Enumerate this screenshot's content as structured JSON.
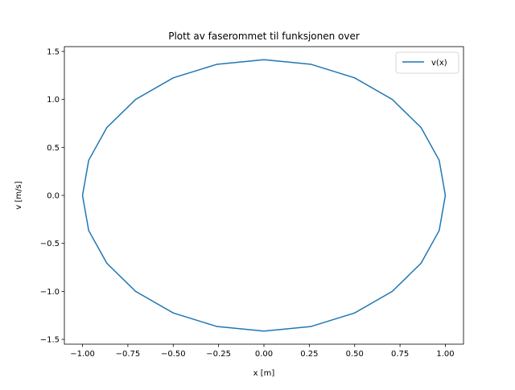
{
  "chart_data": {
    "type": "line",
    "title": "Plott av faserommet til funksjonen over",
    "xlabel": "x [m]",
    "ylabel": "v [m/s]",
    "xlim": [
      -1.1,
      1.1
    ],
    "ylim": [
      -1.55,
      1.55
    ],
    "xticks": [
      -1.0,
      -0.75,
      -0.5,
      -0.25,
      0.0,
      0.25,
      0.5,
      0.75,
      1.0
    ],
    "xtick_labels": [
      "−1.00",
      "−0.75",
      "−0.50",
      "−0.25",
      "0.00",
      "0.25",
      "0.50",
      "0.75",
      "1.00"
    ],
    "yticks": [
      -1.5,
      -1.0,
      -0.5,
      0.0,
      0.5,
      1.0,
      1.5
    ],
    "ytick_labels": [
      "−1.5",
      "−1.0",
      "−0.5",
      "0.0",
      "0.5",
      "1.0",
      "1.5"
    ],
    "grid": false,
    "legend_position": "upper-right",
    "series": [
      {
        "name": "v(x)",
        "color": "#1f77b4",
        "x": [
          0,
          0.259,
          0.5,
          0.707,
          0.866,
          0.966,
          1,
          0.966,
          0.866,
          0.707,
          0.5,
          0.259,
          0,
          -0.259,
          -0.5,
          -0.707,
          -0.866,
          -0.966,
          -1,
          -0.966,
          -0.866,
          -0.707,
          -0.5,
          -0.259,
          0
        ],
        "y": [
          1.414,
          1.366,
          1.225,
          1.0,
          0.707,
          0.366,
          0,
          -0.366,
          -0.707,
          -1.0,
          -1.225,
          -1.366,
          -1.414,
          -1.366,
          -1.225,
          -1.0,
          -0.707,
          -0.366,
          0,
          0.366,
          0.707,
          1.0,
          1.225,
          1.366,
          1.414
        ]
      }
    ]
  }
}
